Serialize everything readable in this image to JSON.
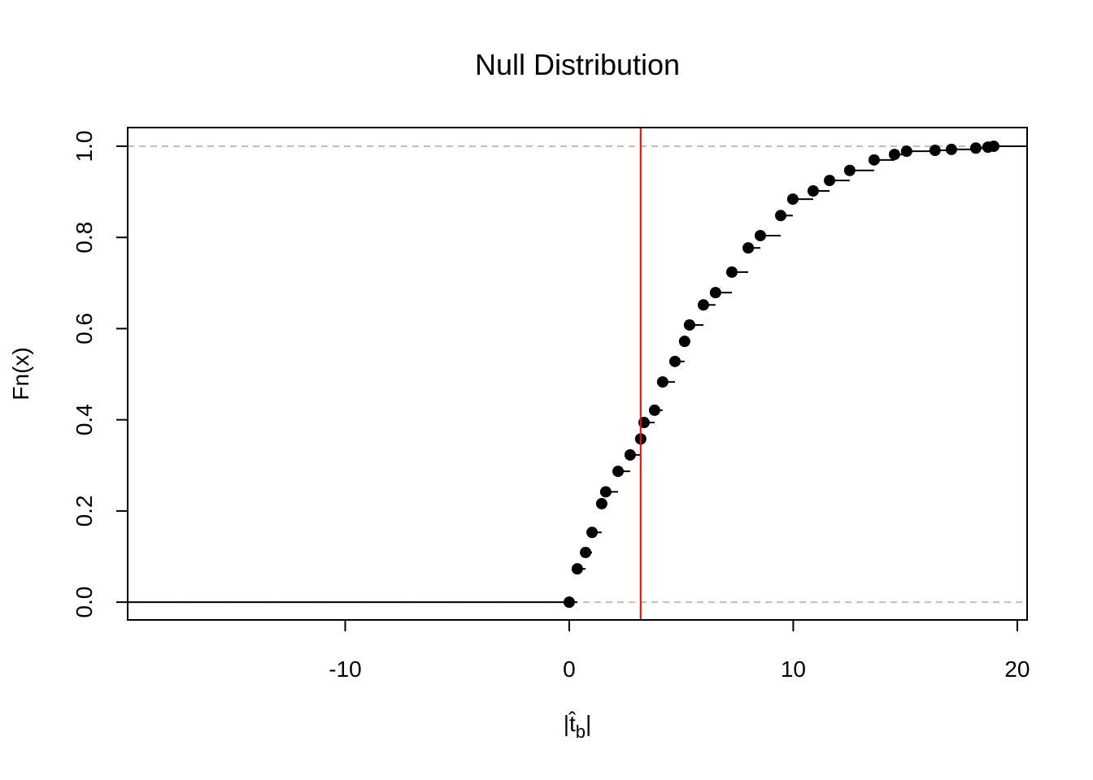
{
  "chart_data": {
    "type": "ecdf",
    "title": "Null Distribution",
    "x_label": {
      "main": "|t̂",
      "sub": "b",
      "end": "|"
    },
    "y_label": "Fn(x)",
    "x": [
      0,
      0.36,
      0.73,
      1.02,
      1.45,
      1.63,
      2.18,
      2.72,
      3.19,
      3.34,
      3.81,
      4.17,
      4.72,
      5.15,
      5.37,
      5.99,
      6.53,
      7.26,
      7.99,
      8.53,
      9.44,
      9.98,
      10.89,
      11.62,
      12.52,
      13.61,
      14.52,
      15.06,
      16.33,
      17.06,
      18.15,
      18.69,
      18.95
    ],
    "values": [
      0,
      0.073,
      0.109,
      0.153,
      0.216,
      0.242,
      0.287,
      0.323,
      0.358,
      0.394,
      0.421,
      0.483,
      0.528,
      0.572,
      0.608,
      0.652,
      0.679,
      0.724,
      0.777,
      0.804,
      0.848,
      0.884,
      0.902,
      0.925,
      0.947,
      0.97,
      0.982,
      0.989,
      0.991,
      0.993,
      0.996,
      0.998,
      1.0
    ],
    "color": "#000000",
    "vline": {
      "value": 3.19,
      "color": "#ff0000"
    },
    "hlines": {
      "values": [
        0,
        1
      ],
      "color": "#bebebe"
    },
    "xlim": [
      -19.71,
      20.44
    ],
    "ylim": [
      -0.039,
      1.041
    ],
    "xticks": [
      -10,
      0,
      10,
      20
    ],
    "yticks": [
      {
        "value": 0,
        "label": "0.0"
      },
      {
        "value": 0.2,
        "label": "0.2"
      },
      {
        "value": 0.4,
        "label": "0.4"
      },
      {
        "value": 0.6,
        "label": "0.6"
      },
      {
        "value": 0.8,
        "label": "0.8"
      },
      {
        "value": 1,
        "label": "1.0"
      }
    ]
  }
}
